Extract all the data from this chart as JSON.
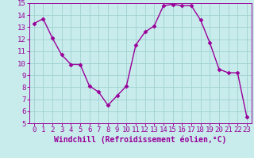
{
  "x": [
    0,
    1,
    2,
    3,
    4,
    5,
    6,
    7,
    8,
    9,
    10,
    11,
    12,
    13,
    14,
    15,
    16,
    17,
    18,
    19,
    20,
    21,
    22,
    23
  ],
  "y": [
    13.3,
    13.7,
    12.1,
    10.7,
    9.9,
    9.9,
    8.1,
    7.6,
    6.5,
    7.3,
    8.1,
    11.5,
    12.6,
    13.1,
    14.8,
    14.9,
    14.8,
    14.8,
    13.6,
    11.7,
    9.5,
    9.2,
    9.2,
    5.5
  ],
  "line_color": "#990099",
  "marker": "D",
  "marker_size": 2.5,
  "bg_color": "#c8ecec",
  "grid_color": "#a0d0d0",
  "axis_label_color": "#990099",
  "tick_color": "#990099",
  "xlabel": "Windchill (Refroidissement éolien,°C)",
  "xlim": [
    -0.5,
    23.5
  ],
  "ylim": [
    5,
    15
  ],
  "yticks": [
    5,
    6,
    7,
    8,
    9,
    10,
    11,
    12,
    13,
    14,
    15
  ],
  "xticks": [
    0,
    1,
    2,
    3,
    4,
    5,
    6,
    7,
    8,
    9,
    10,
    11,
    12,
    13,
    14,
    15,
    16,
    17,
    18,
    19,
    20,
    21,
    22,
    23
  ],
  "spine_color": "#990099",
  "xlabel_fontsize": 7.0,
  "tick_fontsize": 6.5,
  "line_width": 1.0
}
